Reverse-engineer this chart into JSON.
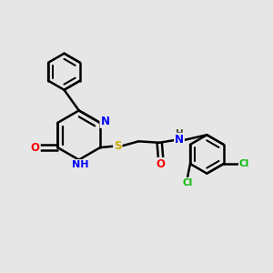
{
  "background_color": "#e6e6e6",
  "line_color": "#000000",
  "bond_width": 1.8,
  "figsize": [
    3.0,
    3.0
  ],
  "dpi": 100,
  "atom_colors": {
    "N": "#0000ff",
    "O": "#ff0000",
    "S": "#ccaa00",
    "Cl": "#00bb00",
    "H": "#444444"
  }
}
